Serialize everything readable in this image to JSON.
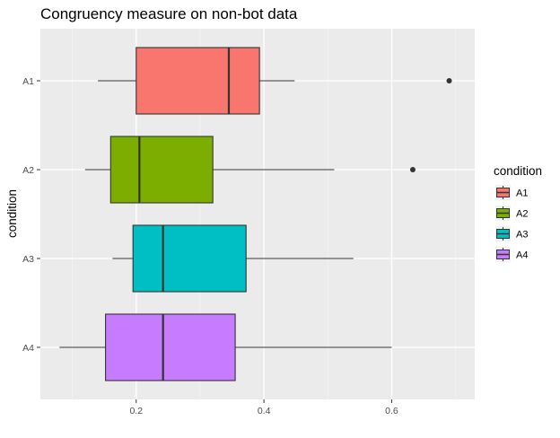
{
  "chart_data": {
    "type": "boxplot",
    "orientation": "horizontal",
    "title": "Congruency measure on non-bot data",
    "xlabel": "",
    "ylabel": "condition",
    "xlim": [
      0.05,
      0.73
    ],
    "x_ticks": [
      0.2,
      0.4,
      0.6
    ],
    "x_tick_labels": [
      "0.2",
      "0.4",
      "0.6"
    ],
    "grid": true,
    "legend": {
      "title": "condition",
      "position": "right"
    },
    "categories": [
      "A1",
      "A2",
      "A3",
      "A4"
    ],
    "series": [
      {
        "name": "A1",
        "color": "#F8766D",
        "whisker_low": 0.14,
        "q1": 0.2,
        "median": 0.345,
        "q3": 0.393,
        "whisker_high": 0.448,
        "outliers": [
          0.69
        ]
      },
      {
        "name": "A2",
        "color": "#7CAE00",
        "whisker_low": 0.12,
        "q1": 0.16,
        "median": 0.205,
        "q3": 0.32,
        "whisker_high": 0.51,
        "outliers": [
          0.633
        ]
      },
      {
        "name": "A3",
        "color": "#00BFC4",
        "whisker_low": 0.163,
        "q1": 0.195,
        "median": 0.242,
        "q3": 0.372,
        "whisker_high": 0.54,
        "outliers": []
      },
      {
        "name": "A4",
        "color": "#C77CFF",
        "whisker_low": 0.08,
        "q1": 0.152,
        "median": 0.242,
        "q3": 0.355,
        "whisker_high": 0.6,
        "outliers": []
      }
    ]
  }
}
